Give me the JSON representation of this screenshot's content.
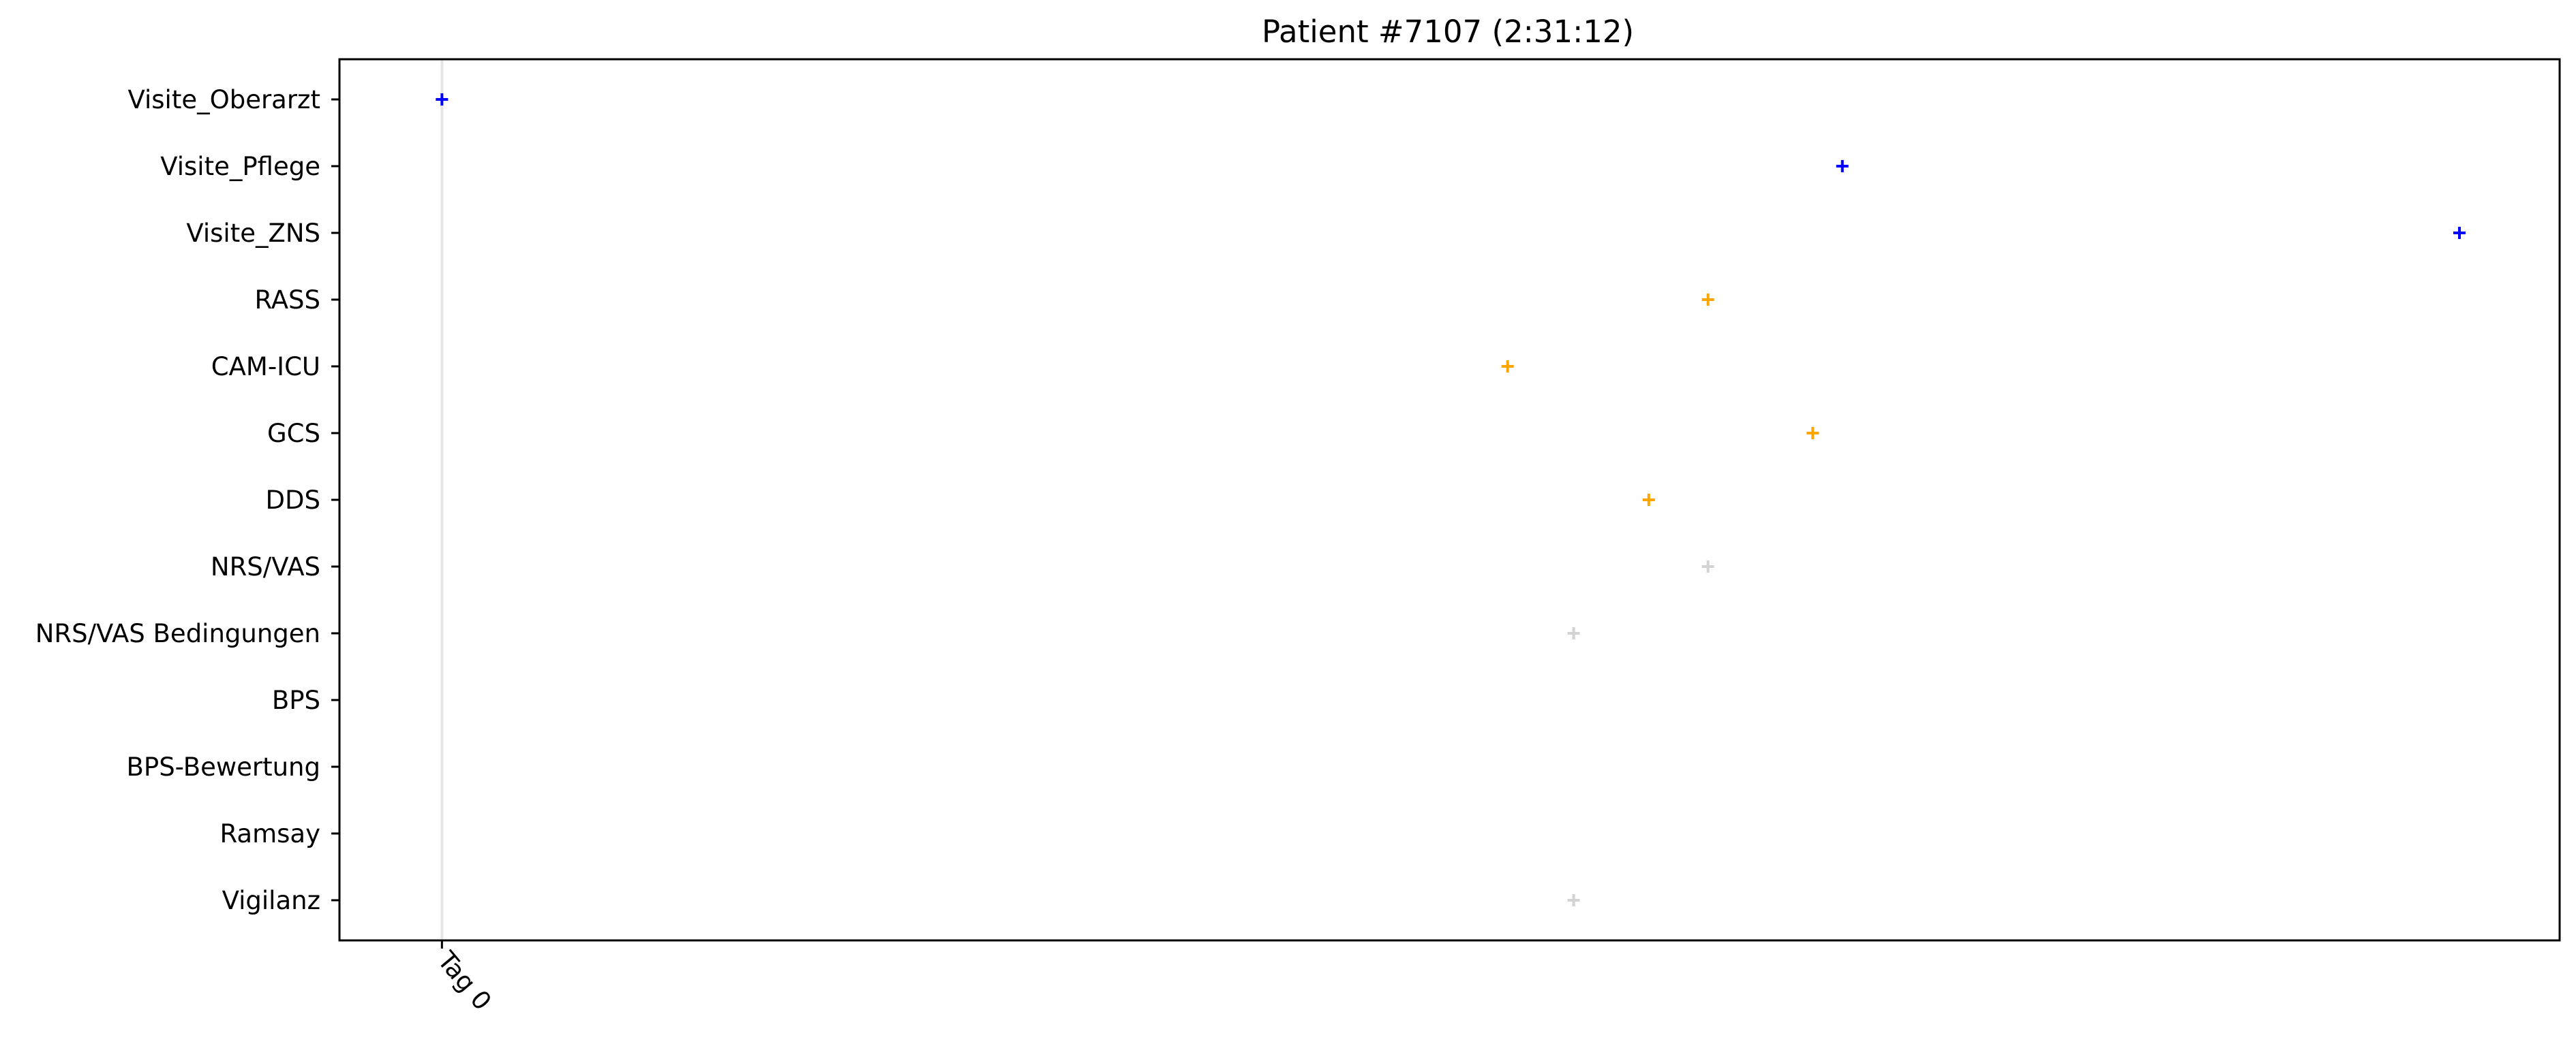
{
  "chart_data": {
    "type": "scatter",
    "title": "Patient #7107 (2:31:12)",
    "xlabel": "",
    "ylabel": "",
    "x_ticks": [
      {
        "label": "Tag 0",
        "x": 0
      }
    ],
    "xlim": [
      -0.045,
      0.93
    ],
    "categories": [
      "Visite_Oberarzt",
      "Visite_Pflege",
      "Visite_ZNS",
      "RASS",
      "CAM-ICU",
      "GCS",
      "DDS",
      "NRS/VAS",
      "NRS/VAS Bedingungen",
      "BPS",
      "BPS-Bewertung",
      "Ramsay",
      "Vigilanz"
    ],
    "marker": "+",
    "grid": false,
    "vertical_reference_line_x": 0,
    "colors": {
      "blue": "#0000ff",
      "orange": "#ffa500",
      "gray": "#d3d3d3",
      "reference_line": "#e6e6e6"
    },
    "points": [
      {
        "category": "Visite_Oberarzt",
        "x": 0.0,
        "color": "blue"
      },
      {
        "category": "Visite_Pflege",
        "x": 0.615,
        "color": "blue"
      },
      {
        "category": "Visite_ZNS",
        "x": 0.886,
        "color": "blue"
      },
      {
        "category": "RASS",
        "x": 0.556,
        "color": "orange"
      },
      {
        "category": "CAM-ICU",
        "x": 0.468,
        "color": "orange"
      },
      {
        "category": "GCS",
        "x": 0.602,
        "color": "orange"
      },
      {
        "category": "DDS",
        "x": 0.53,
        "color": "orange"
      },
      {
        "category": "NRS/VAS",
        "x": 0.556,
        "color": "gray"
      },
      {
        "category": "NRS/VAS Bedingungen",
        "x": 0.497,
        "color": "gray"
      },
      {
        "category": "Vigilanz",
        "x": 0.497,
        "color": "gray"
      }
    ]
  }
}
